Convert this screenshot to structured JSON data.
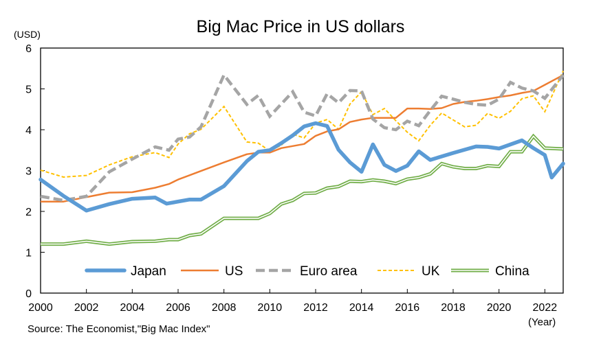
{
  "chart_data": {
    "type": "line",
    "title": "Big Mac Price in US dollars",
    "ylabel": "(USD)",
    "xlabel": "(Year)",
    "source": "Source: The Economist,\"Big Mac Index\"",
    "ylim": [
      0,
      6
    ],
    "xlim": [
      2000,
      2022.8
    ],
    "y_ticks": [
      0,
      1,
      2,
      3,
      4,
      5,
      6
    ],
    "x_ticks": [
      2000,
      2002,
      2004,
      2006,
      2008,
      2010,
      2012,
      2014,
      2016,
      2018,
      2020,
      2022
    ],
    "grid": "horizontal gridlines off, plot area framed",
    "legend": "inside, lower center",
    "series": [
      {
        "name": "Japan",
        "color": "#5B9BD5",
        "style": "thick-solid",
        "points": [
          [
            2000,
            2.78
          ],
          [
            2001,
            2.38
          ],
          [
            2002,
            2.02
          ],
          [
            2003,
            2.18
          ],
          [
            2004,
            2.31
          ],
          [
            2005,
            2.34
          ],
          [
            2005.5,
            2.19
          ],
          [
            2006.5,
            2.29
          ],
          [
            2007,
            2.29
          ],
          [
            2008,
            2.62
          ],
          [
            2009,
            3.23
          ],
          [
            2009.5,
            3.46
          ],
          [
            2010,
            3.5
          ],
          [
            2010.5,
            3.67
          ],
          [
            2011,
            3.86
          ],
          [
            2011.5,
            4.08
          ],
          [
            2012,
            4.16
          ],
          [
            2012.5,
            4.09
          ],
          [
            2013,
            3.51
          ],
          [
            2013.5,
            3.2
          ],
          [
            2014,
            2.97
          ],
          [
            2014.5,
            3.64
          ],
          [
            2015,
            3.14
          ],
          [
            2015.5,
            2.99
          ],
          [
            2016,
            3.12
          ],
          [
            2016.5,
            3.47
          ],
          [
            2017,
            3.26
          ],
          [
            2018,
            3.43
          ],
          [
            2019,
            3.59
          ],
          [
            2019.5,
            3.58
          ],
          [
            2020,
            3.54
          ],
          [
            2021,
            3.74
          ],
          [
            2021.5,
            3.55
          ],
          [
            2022,
            3.38
          ],
          [
            2022.3,
            2.83
          ],
          [
            2022.8,
            3.17
          ]
        ]
      },
      {
        "name": "US",
        "color": "#ED7D31",
        "style": "solid",
        "points": [
          [
            2000,
            2.24
          ],
          [
            2001,
            2.24
          ],
          [
            2002,
            2.35
          ],
          [
            2003,
            2.46
          ],
          [
            2004,
            2.47
          ],
          [
            2005,
            2.58
          ],
          [
            2005.6,
            2.67
          ],
          [
            2006,
            2.78
          ],
          [
            2007,
            2.99
          ],
          [
            2008,
            3.2
          ],
          [
            2009,
            3.4
          ],
          [
            2009.5,
            3.44
          ],
          [
            2010,
            3.44
          ],
          [
            2010.5,
            3.55
          ],
          [
            2011,
            3.6
          ],
          [
            2011.5,
            3.65
          ],
          [
            2012,
            3.85
          ],
          [
            2012.5,
            3.96
          ],
          [
            2013,
            4.01
          ],
          [
            2013.5,
            4.19
          ],
          [
            2014,
            4.25
          ],
          [
            2014.5,
            4.29
          ],
          [
            2015,
            4.29
          ],
          [
            2015.5,
            4.29
          ],
          [
            2016,
            4.52
          ],
          [
            2016.5,
            4.52
          ],
          [
            2017,
            4.51
          ],
          [
            2017.5,
            4.53
          ],
          [
            2018,
            4.63
          ],
          [
            2018.5,
            4.68
          ],
          [
            2019,
            4.71
          ],
          [
            2019.5,
            4.75
          ],
          [
            2020,
            4.8
          ],
          [
            2020.5,
            4.84
          ],
          [
            2021,
            4.9
          ],
          [
            2021.5,
            4.95
          ],
          [
            2022,
            5.1
          ],
          [
            2022.8,
            5.34
          ]
        ]
      },
      {
        "name": "Euro area",
        "color": "#A5A5A5",
        "style": "dashed",
        "points": [
          [
            2000,
            2.37
          ],
          [
            2001,
            2.27
          ],
          [
            2002,
            2.37
          ],
          [
            2003,
            2.97
          ],
          [
            2004,
            3.28
          ],
          [
            2005,
            3.58
          ],
          [
            2005.6,
            3.5
          ],
          [
            2006,
            3.77
          ],
          [
            2006.5,
            3.82
          ],
          [
            2007,
            4.07
          ],
          [
            2008,
            5.34
          ],
          [
            2009,
            4.62
          ],
          [
            2009.5,
            4.84
          ],
          [
            2010,
            4.33
          ],
          [
            2011,
            4.93
          ],
          [
            2011.5,
            4.43
          ],
          [
            2012,
            4.34
          ],
          [
            2012.5,
            4.88
          ],
          [
            2013,
            4.66
          ],
          [
            2013.5,
            4.96
          ],
          [
            2014,
            4.95
          ],
          [
            2014.5,
            4.26
          ],
          [
            2015,
            4.05
          ],
          [
            2015.5,
            4.0
          ],
          [
            2016,
            4.21
          ],
          [
            2016.5,
            4.1
          ],
          [
            2017,
            4.47
          ],
          [
            2017.5,
            4.82
          ],
          [
            2018,
            4.75
          ],
          [
            2018.5,
            4.67
          ],
          [
            2019,
            4.62
          ],
          [
            2019.5,
            4.6
          ],
          [
            2020,
            4.75
          ],
          [
            2020.5,
            5.16
          ],
          [
            2021,
            5.02
          ],
          [
            2021.5,
            4.95
          ],
          [
            2022,
            4.77
          ],
          [
            2022.8,
            5.34
          ]
        ]
      },
      {
        "name": "UK",
        "color": "#FFC000",
        "style": "dotted",
        "points": [
          [
            2000,
            3.01
          ],
          [
            2001,
            2.84
          ],
          [
            2002,
            2.88
          ],
          [
            2003,
            3.14
          ],
          [
            2004,
            3.34
          ],
          [
            2005,
            3.44
          ],
          [
            2005.6,
            3.32
          ],
          [
            2006,
            3.65
          ],
          [
            2006.5,
            3.9
          ],
          [
            2007,
            4.01
          ],
          [
            2008,
            4.57
          ],
          [
            2009,
            3.7
          ],
          [
            2009.5,
            3.67
          ],
          [
            2010,
            3.48
          ],
          [
            2010.5,
            3.62
          ],
          [
            2011,
            3.89
          ],
          [
            2011.5,
            3.8
          ],
          [
            2012,
            4.16
          ],
          [
            2012.5,
            4.25
          ],
          [
            2013,
            4.01
          ],
          [
            2013.5,
            4.63
          ],
          [
            2014,
            4.93
          ],
          [
            2014.5,
            4.37
          ],
          [
            2015,
            4.52
          ],
          [
            2015.5,
            4.22
          ],
          [
            2016,
            3.94
          ],
          [
            2016.5,
            3.73
          ],
          [
            2017,
            4.11
          ],
          [
            2017.5,
            4.41
          ],
          [
            2018,
            4.24
          ],
          [
            2018.5,
            4.07
          ],
          [
            2019,
            4.11
          ],
          [
            2019.5,
            4.4
          ],
          [
            2020,
            4.28
          ],
          [
            2020.5,
            4.45
          ],
          [
            2021,
            4.76
          ],
          [
            2021.5,
            4.83
          ],
          [
            2022,
            4.44
          ],
          [
            2022.8,
            5.44
          ]
        ]
      },
      {
        "name": "China",
        "color": "#70AD47",
        "style": "double",
        "points": [
          [
            2000,
            1.2
          ],
          [
            2001,
            1.2
          ],
          [
            2002,
            1.27
          ],
          [
            2003,
            1.2
          ],
          [
            2004,
            1.26
          ],
          [
            2005,
            1.27
          ],
          [
            2005.6,
            1.31
          ],
          [
            2006,
            1.31
          ],
          [
            2006.5,
            1.41
          ],
          [
            2007,
            1.45
          ],
          [
            2008,
            1.83
          ],
          [
            2009,
            1.83
          ],
          [
            2009.5,
            1.83
          ],
          [
            2010,
            1.95
          ],
          [
            2010.5,
            2.18
          ],
          [
            2011,
            2.27
          ],
          [
            2011.5,
            2.44
          ],
          [
            2012,
            2.45
          ],
          [
            2012.5,
            2.57
          ],
          [
            2013,
            2.61
          ],
          [
            2013.5,
            2.74
          ],
          [
            2014,
            2.73
          ],
          [
            2014.5,
            2.77
          ],
          [
            2015,
            2.74
          ],
          [
            2015.5,
            2.68
          ],
          [
            2016,
            2.79
          ],
          [
            2016.5,
            2.83
          ],
          [
            2017,
            2.92
          ],
          [
            2017.5,
            3.17
          ],
          [
            2018,
            3.09
          ],
          [
            2018.5,
            3.05
          ],
          [
            2019,
            3.05
          ],
          [
            2019.5,
            3.12
          ],
          [
            2020,
            3.1
          ],
          [
            2020.5,
            3.46
          ],
          [
            2021,
            3.46
          ],
          [
            2021.5,
            3.84
          ],
          [
            2022,
            3.55
          ],
          [
            2022.8,
            3.53
          ]
        ]
      }
    ]
  }
}
